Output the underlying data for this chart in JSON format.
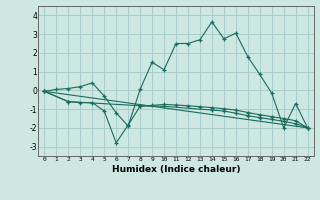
{
  "xlabel": "Humidex (Indice chaleur)",
  "bg_color": "#cce8e0",
  "grid_color": "#aacccc",
  "line_color": "#1a6b5e",
  "x_ticks": [
    0,
    1,
    2,
    3,
    4,
    5,
    6,
    7,
    8,
    9,
    10,
    11,
    12,
    13,
    14,
    15,
    16,
    17,
    18,
    19,
    20,
    21,
    22
  ],
  "ylim": [
    -3.5,
    4.5
  ],
  "xlim": [
    -0.5,
    22.5
  ],
  "yticks": [
    -3,
    -2,
    -1,
    0,
    1,
    2,
    3,
    4
  ],
  "line1_x": [
    0,
    1,
    2,
    3,
    4,
    5,
    6,
    7,
    8,
    9,
    10,
    11,
    12,
    13,
    14,
    15,
    16,
    17,
    18,
    19,
    20,
    21,
    22
  ],
  "line1_y": [
    -0.05,
    0.05,
    0.1,
    0.2,
    0.4,
    -0.3,
    -1.2,
    -1.9,
    0.05,
    1.5,
    1.1,
    2.5,
    2.5,
    2.7,
    3.65,
    2.75,
    3.05,
    1.8,
    0.85,
    -0.15,
    -2.0,
    -0.7,
    -2.0
  ],
  "line2_x": [
    0,
    2,
    3,
    4,
    5,
    6,
    7,
    8,
    9,
    10,
    11,
    12,
    13,
    14,
    15,
    16,
    17,
    18,
    19,
    20,
    21,
    22
  ],
  "line2_y": [
    -0.05,
    -0.6,
    -0.65,
    -0.65,
    -1.1,
    -2.8,
    -1.85,
    -0.85,
    -0.8,
    -0.75,
    -0.78,
    -0.82,
    -0.87,
    -0.92,
    -0.98,
    -1.05,
    -1.18,
    -1.3,
    -1.4,
    -1.5,
    -1.62,
    -2.0
  ],
  "line3_x": [
    0,
    22
  ],
  "line3_y": [
    -0.05,
    -2.0
  ],
  "line4_x": [
    0,
    2,
    8,
    10,
    14,
    15,
    16,
    17,
    18,
    19,
    20,
    21,
    22
  ],
  "line4_y": [
    -0.05,
    -0.6,
    -0.82,
    -0.85,
    -1.05,
    -1.1,
    -1.22,
    -1.35,
    -1.45,
    -1.55,
    -1.65,
    -1.78,
    -2.0
  ]
}
